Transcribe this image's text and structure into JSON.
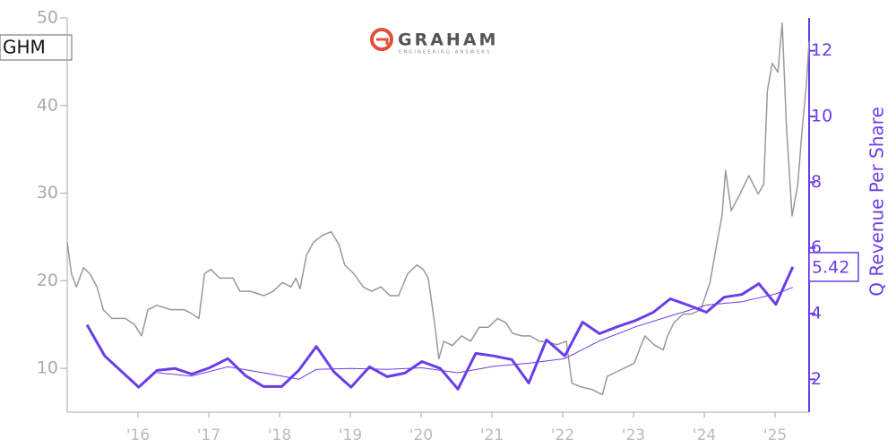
{
  "logo": {
    "text": "GRAHAM",
    "tagline": "ENGINEERING ANSWERS"
  },
  "chart_data": {
    "type": "line",
    "y2label": "Q Revenue Per Share",
    "xlim": [
      2015.0,
      2025.48
    ],
    "xticks": [
      {
        "value": 2016,
        "label": "'16"
      },
      {
        "value": 2017,
        "label": "'17"
      },
      {
        "value": 2018,
        "label": "'18"
      },
      {
        "value": 2019,
        "label": "'19"
      },
      {
        "value": 2020,
        "label": "'20"
      },
      {
        "value": 2021,
        "label": "'21"
      },
      {
        "value": 2022,
        "label": "'22"
      },
      {
        "value": 2023,
        "label": "'23"
      },
      {
        "value": 2024,
        "label": "'24"
      },
      {
        "value": 2025,
        "label": "'25"
      }
    ],
    "ylim": [
      5,
      50
    ],
    "yticks": [
      10,
      20,
      30,
      40,
      50
    ],
    "y2lim": [
      1,
      13
    ],
    "y2ticks": [
      2,
      4,
      6,
      8,
      10,
      12
    ],
    "grid": false,
    "series": [
      {
        "name": "GHM",
        "color": "#999999",
        "width": 1.5,
        "x": [
          2015.0,
          2015.06,
          2015.13,
          2015.23,
          2015.32,
          2015.42,
          2015.51,
          2015.63,
          2015.82,
          2015.95,
          2016.05,
          2016.14,
          2016.27,
          2016.46,
          2016.65,
          2016.77,
          2016.86,
          2016.94,
          2017.03,
          2017.15,
          2017.34,
          2017.44,
          2017.59,
          2017.78,
          2017.91,
          2018.04,
          2018.16,
          2018.23,
          2018.29,
          2018.38,
          2018.48,
          2018.61,
          2018.73,
          2018.84,
          2018.92,
          2019.05,
          2019.18,
          2019.3,
          2019.43,
          2019.56,
          2019.68,
          2019.81,
          2019.94,
          2020.03,
          2020.1,
          2020.19,
          2020.25,
          2020.32,
          2020.44,
          2020.57,
          2020.7,
          2020.82,
          2020.95,
          2021.08,
          2021.2,
          2021.29,
          2021.42,
          2021.54,
          2021.67,
          2021.8,
          2021.92,
          2022.05,
          2022.13,
          2022.25,
          2022.41,
          2022.56,
          2022.63,
          2022.76,
          2022.89,
          2023.01,
          2023.09,
          2023.16,
          2023.29,
          2023.42,
          2023.48,
          2023.57,
          2023.7,
          2023.82,
          2023.95,
          2024.08,
          2024.18,
          2024.25,
          2024.3,
          2024.38,
          2024.51,
          2024.63,
          2024.76,
          2024.84,
          2024.89,
          2024.96,
          2025.04,
          2025.1,
          2025.16,
          2025.24,
          2025.32,
          2025.38,
          2025.44,
          2025.48
        ],
        "values": [
          24.4,
          20.8,
          19.3,
          21.5,
          20.8,
          19.3,
          16.7,
          15.7,
          15.7,
          15.0,
          13.7,
          16.7,
          17.2,
          16.7,
          16.7,
          16.2,
          15.7,
          20.8,
          21.3,
          20.3,
          20.3,
          18.8,
          18.8,
          18.3,
          18.8,
          19.8,
          19.3,
          20.3,
          19.1,
          22.9,
          24.4,
          25.2,
          25.6,
          24.1,
          21.8,
          20.8,
          19.3,
          18.8,
          19.3,
          18.3,
          18.3,
          20.8,
          21.8,
          21.3,
          20.3,
          15.2,
          11.1,
          13.1,
          12.6,
          13.7,
          13.1,
          14.7,
          14.7,
          15.7,
          15.2,
          14.0,
          13.7,
          13.7,
          13.1,
          13.0,
          12.7,
          13.1,
          8.3,
          7.9,
          7.6,
          7.0,
          9.1,
          9.6,
          10.1,
          10.6,
          12.3,
          13.7,
          12.7,
          12.1,
          13.7,
          15.2,
          16.2,
          16.2,
          16.7,
          19.8,
          24.4,
          27.4,
          32.6,
          28.0,
          30.0,
          32.0,
          29.9,
          31.0,
          41.7,
          44.8,
          43.8,
          49.4,
          37.7,
          27.4,
          31.0,
          37.1,
          42.2,
          47.3
        ]
      },
      {
        "color": "#6a3de8",
        "axis": "y2",
        "width": 3,
        "x": [
          2015.28,
          2015.53,
          2016.01,
          2016.27,
          2016.52,
          2016.76,
          2017.01,
          2017.27,
          2017.52,
          2017.77,
          2018.03,
          2018.27,
          2018.52,
          2018.77,
          2019.01,
          2019.27,
          2019.52,
          2019.77,
          2020.01,
          2020.27,
          2020.52,
          2020.77,
          2021.03,
          2021.28,
          2021.52,
          2021.77,
          2022.03,
          2022.28,
          2022.52,
          2022.77,
          2023.03,
          2023.28,
          2023.52,
          2023.77,
          2024.03,
          2024.28,
          2024.53,
          2024.77,
          2025.01,
          2025.25
        ],
        "values": [
          3.66,
          2.71,
          1.76,
          2.27,
          2.33,
          2.16,
          2.35,
          2.63,
          2.11,
          1.78,
          1.78,
          2.27,
          3.0,
          2.22,
          1.76,
          2.38,
          2.08,
          2.19,
          2.54,
          2.33,
          1.7,
          2.79,
          2.71,
          2.6,
          1.89,
          3.2,
          2.71,
          3.74,
          3.39,
          3.6,
          3.79,
          4.04,
          4.45,
          4.26,
          4.04,
          4.5,
          4.58,
          4.91,
          4.28,
          5.42
        ]
      },
      {
        "color": "#6a3de8",
        "axis": "y2",
        "width": 1,
        "x": [
          2016.27,
          2016.76,
          2017.27,
          2017.77,
          2018.27,
          2018.52,
          2019.01,
          2019.52,
          2020.01,
          2020.52,
          2021.03,
          2021.52,
          2022.03,
          2022.52,
          2023.03,
          2023.52,
          2024.03,
          2024.53,
          2025.01,
          2025.25
        ],
        "values": [
          2.2,
          2.1,
          2.38,
          2.2,
          2.0,
          2.3,
          2.33,
          2.3,
          2.35,
          2.2,
          2.4,
          2.49,
          2.63,
          3.17,
          3.6,
          3.93,
          4.26,
          4.36,
          4.6,
          4.8
        ]
      }
    ]
  }
}
